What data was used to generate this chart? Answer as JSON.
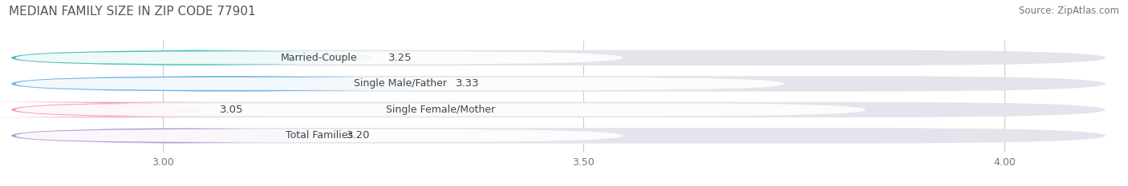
{
  "title": "MEDIAN FAMILY SIZE IN ZIP CODE 77901",
  "source": "Source: ZipAtlas.com",
  "categories": [
    "Married-Couple",
    "Single Male/Father",
    "Single Female/Mother",
    "Total Families"
  ],
  "values": [
    3.25,
    3.33,
    3.05,
    3.2
  ],
  "bar_colors": [
    "#40bfbf",
    "#6db3e8",
    "#f4a0b8",
    "#b89ed4"
  ],
  "bar_background": "#e4e4ec",
  "xmin": 2.82,
  "xlim": [
    2.82,
    4.12
  ],
  "xticks": [
    3.0,
    3.5,
    4.0
  ],
  "label_color": "#777777",
  "title_color": "#555555",
  "bar_height": 0.6,
  "value_fontsize": 9.5,
  "label_fontsize": 9,
  "tick_fontsize": 9,
  "title_fontsize": 11,
  "source_fontsize": 8.5
}
